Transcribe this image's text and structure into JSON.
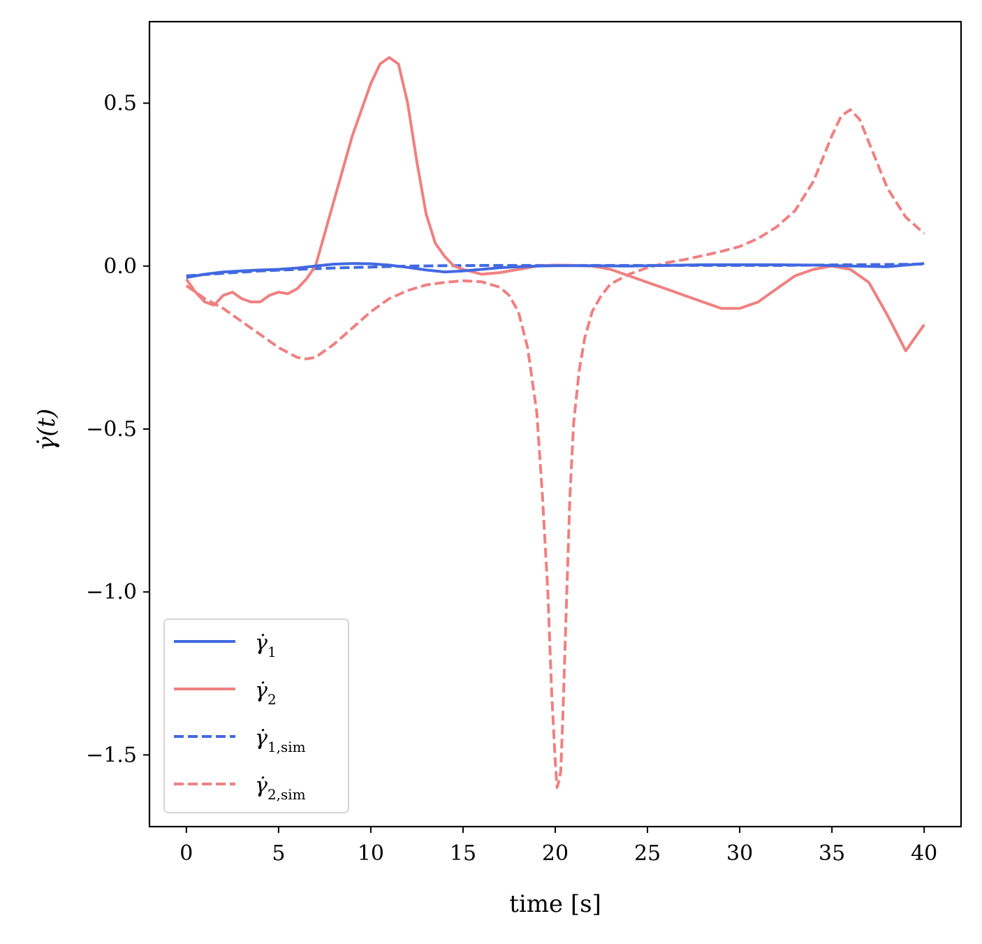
{
  "chart_data": {
    "type": "line",
    "title": "",
    "xlabel": "time [s]",
    "ylabel": "γ̇(t)",
    "xlim": [
      -2,
      42
    ],
    "ylim": [
      -1.72,
      0.75
    ],
    "xticks": [
      0,
      5,
      10,
      15,
      20,
      25,
      30,
      35,
      40
    ],
    "yticks": [
      0.5,
      0.0,
      -0.5,
      -1.0,
      -1.5
    ],
    "xtick_labels": [
      "0",
      "5",
      "10",
      "15",
      "20",
      "25",
      "30",
      "35",
      "40"
    ],
    "ytick_labels": [
      "0.5",
      "0.0",
      "−0.5",
      "−1.0",
      "−1.5"
    ],
    "grid": false,
    "legend_position": "bottom-left",
    "series": [
      {
        "name": "γ̇1",
        "label_main": "γ̇",
        "label_sub": "1",
        "color": "#4169e1",
        "dash": "solid",
        "x": [
          0,
          1,
          2,
          3,
          4,
          5,
          6,
          7,
          8,
          9,
          10,
          11,
          12,
          13,
          14,
          15,
          16,
          17,
          18,
          19,
          20,
          22,
          24,
          26,
          28,
          30,
          32,
          34,
          36,
          38,
          40
        ],
        "y": [
          -0.035,
          -0.025,
          -0.018,
          -0.015,
          -0.012,
          -0.01,
          -0.006,
          0.0,
          0.006,
          0.008,
          0.007,
          0.003,
          -0.004,
          -0.012,
          -0.018,
          -0.015,
          -0.01,
          -0.005,
          -0.002,
          0.0,
          0.001,
          0.001,
          0.0,
          0.002,
          0.004,
          0.004,
          0.004,
          0.003,
          0.0,
          -0.002,
          0.008
        ]
      },
      {
        "name": "γ̇2",
        "label_main": "γ̇",
        "label_sub": "2",
        "color": "#f08080",
        "dash": "solid",
        "x": [
          0,
          0.5,
          1,
          1.5,
          2,
          2.5,
          3,
          3.5,
          4,
          4.5,
          5,
          5.5,
          6,
          6.5,
          7,
          8,
          9,
          10,
          10.5,
          11,
          11.5,
          12,
          12.5,
          13,
          13.5,
          14,
          14.5,
          15,
          16,
          17,
          18,
          19,
          20,
          21,
          22,
          23,
          24,
          25,
          26,
          27,
          28,
          29,
          30,
          31,
          32,
          33,
          34,
          35,
          36,
          37,
          38,
          39,
          40
        ],
        "y": [
          -0.04,
          -0.08,
          -0.11,
          -0.12,
          -0.09,
          -0.08,
          -0.1,
          -0.11,
          -0.11,
          -0.09,
          -0.08,
          -0.085,
          -0.07,
          -0.04,
          0.0,
          0.2,
          0.4,
          0.56,
          0.62,
          0.64,
          0.62,
          0.5,
          0.32,
          0.16,
          0.07,
          0.03,
          0.0,
          -0.01,
          -0.025,
          -0.02,
          -0.01,
          0.0,
          0.003,
          0.002,
          0.0,
          -0.01,
          -0.03,
          -0.05,
          -0.07,
          -0.09,
          -0.11,
          -0.13,
          -0.13,
          -0.11,
          -0.07,
          -0.03,
          -0.01,
          0.0,
          -0.01,
          -0.05,
          -0.15,
          -0.26,
          -0.18
        ]
      },
      {
        "name": "γ̇1,sim",
        "label_main": "γ̇",
        "label_sub": "1,sim",
        "color": "#4169e1",
        "dash": "dashed",
        "x": [
          0,
          2,
          4,
          6,
          8,
          10,
          12,
          14,
          16,
          18,
          20,
          22,
          24,
          26,
          28,
          30,
          32,
          34,
          36,
          38,
          40
        ],
        "y": [
          -0.03,
          -0.022,
          -0.015,
          -0.01,
          -0.006,
          -0.003,
          0.0,
          0.001,
          0.002,
          0.002,
          0.002,
          0.002,
          0.002,
          0.002,
          0.002,
          0.002,
          0.002,
          0.003,
          0.004,
          0.005,
          0.006
        ]
      },
      {
        "name": "γ̇2,sim",
        "label_main": "γ̇",
        "label_sub": "2,sim",
        "color": "#f08080",
        "dash": "dashed",
        "x": [
          0,
          1,
          2,
          3,
          4,
          5,
          6,
          6.5,
          7,
          8,
          9,
          10,
          11,
          12,
          13,
          14,
          15,
          16,
          17,
          17.5,
          18,
          18.5,
          19,
          19.3,
          19.6,
          19.8,
          20,
          20.1,
          20.2,
          20.3,
          20.4,
          20.6,
          20.8,
          21,
          21.3,
          21.6,
          22,
          22.5,
          23,
          24,
          25,
          26,
          27,
          28,
          29,
          30,
          31,
          32,
          33,
          34,
          35,
          35.5,
          36,
          36.5,
          37,
          38,
          39,
          40
        ],
        "y": [
          -0.06,
          -0.1,
          -0.13,
          -0.17,
          -0.21,
          -0.25,
          -0.28,
          -0.285,
          -0.28,
          -0.24,
          -0.19,
          -0.14,
          -0.1,
          -0.075,
          -0.058,
          -0.05,
          -0.045,
          -0.048,
          -0.065,
          -0.09,
          -0.14,
          -0.25,
          -0.45,
          -0.7,
          -1.0,
          -1.3,
          -1.52,
          -1.6,
          -1.58,
          -1.55,
          -1.4,
          -1.05,
          -0.7,
          -0.48,
          -0.32,
          -0.22,
          -0.14,
          -0.09,
          -0.055,
          -0.025,
          -0.005,
          0.01,
          0.02,
          0.032,
          0.045,
          0.06,
          0.085,
          0.12,
          0.17,
          0.26,
          0.4,
          0.46,
          0.48,
          0.45,
          0.38,
          0.24,
          0.15,
          0.1
        ]
      }
    ]
  }
}
